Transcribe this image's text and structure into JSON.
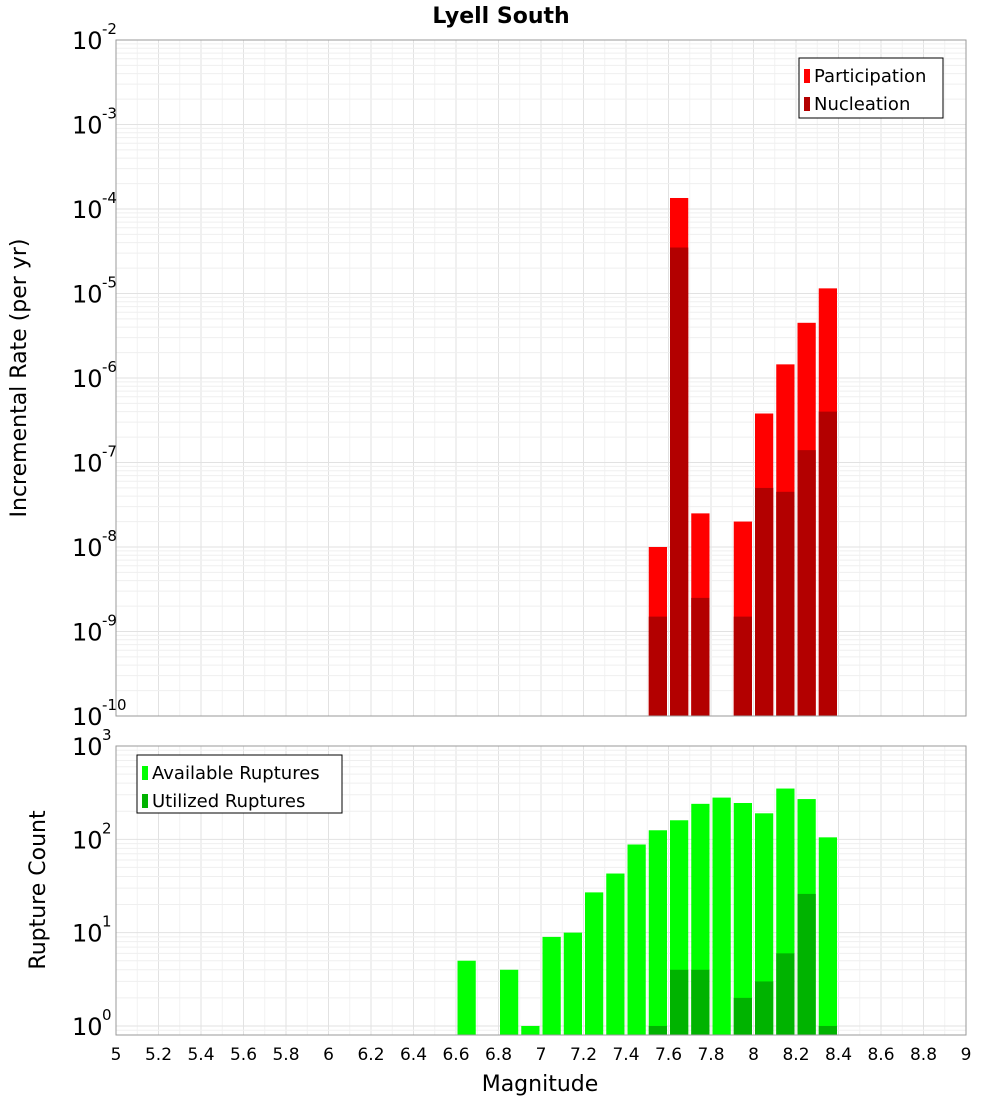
{
  "chart_data": [
    {
      "type": "bar",
      "title": "Lyell South",
      "xlabel": "",
      "ylabel": "Incremental Rate (per yr)",
      "yscale": "log",
      "ylim": [
        1e-10,
        0.01
      ],
      "xlim": [
        5,
        9
      ],
      "grid": true,
      "legend_position": "top-right",
      "y_ticks": [
        {
          "base": "10",
          "exp": "-10",
          "value": 1e-10
        },
        {
          "base": "10",
          "exp": "-9",
          "value": 1e-09
        },
        {
          "base": "10",
          "exp": "-8",
          "value": 1e-08
        },
        {
          "base": "10",
          "exp": "-7",
          "value": 1e-07
        },
        {
          "base": "10",
          "exp": "-6",
          "value": 1e-06
        },
        {
          "base": "10",
          "exp": "-5",
          "value": 1e-05
        },
        {
          "base": "10",
          "exp": "-4",
          "value": 0.0001
        },
        {
          "base": "10",
          "exp": "-3",
          "value": 0.001
        },
        {
          "base": "10",
          "exp": "-2",
          "value": 0.01
        }
      ],
      "bin_width": 0.1,
      "series": [
        {
          "name": "Participation",
          "color": "#ff0000",
          "x": [
            7.55,
            7.65,
            7.75,
            7.95,
            8.05,
            8.15,
            8.25,
            8.35
          ],
          "values": [
            1e-08,
            0.000135,
            2.5e-08,
            2e-08,
            3.8e-07,
            1.45e-06,
            4.5e-06,
            1.15e-05
          ]
        },
        {
          "name": "Nucleation",
          "color": "#b30000",
          "x": [
            7.55,
            7.65,
            7.75,
            7.95,
            8.05,
            8.15,
            8.25,
            8.35
          ],
          "values": [
            1.5e-09,
            3.5e-05,
            2.5e-09,
            1.5e-09,
            5e-08,
            4.5e-08,
            1.4e-07,
            4e-07
          ]
        }
      ]
    },
    {
      "type": "bar",
      "title": "",
      "xlabel": "Magnitude",
      "ylabel": "Rupture Count",
      "yscale": "log",
      "ylim": [
        0.8,
        1000
      ],
      "xlim": [
        5,
        9
      ],
      "grid": true,
      "legend_position": "top-left",
      "x_ticks": [
        "5",
        "5.2",
        "5.4",
        "5.6",
        "5.8",
        "6",
        "6.2",
        "6.4",
        "6.6",
        "6.8",
        "7",
        "7.2",
        "7.4",
        "7.6",
        "7.8",
        "8",
        "8.2",
        "8.4",
        "8.6",
        "8.8",
        "9"
      ],
      "y_ticks": [
        {
          "base": "10",
          "exp": "0",
          "value": 1
        },
        {
          "base": "10",
          "exp": "1",
          "value": 10
        },
        {
          "base": "10",
          "exp": "2",
          "value": 100
        },
        {
          "base": "10",
          "exp": "3",
          "value": 1000
        }
      ],
      "bin_width": 0.1,
      "series": [
        {
          "name": "Available Ruptures",
          "color": "#00ff00",
          "x": [
            6.65,
            6.85,
            6.95,
            7.05,
            7.15,
            7.25,
            7.35,
            7.45,
            7.55,
            7.65,
            7.75,
            7.85,
            7.95,
            8.05,
            8.15,
            8.25,
            8.35
          ],
          "values": [
            5,
            4,
            1,
            9,
            10,
            27,
            43,
            88,
            125,
            160,
            240,
            280,
            245,
            190,
            350,
            270,
            105
          ]
        },
        {
          "name": "Utilized Ruptures",
          "color": "#00b300",
          "x": [
            7.55,
            7.65,
            7.75,
            7.95,
            8.05,
            8.15,
            8.25,
            8.35
          ],
          "values": [
            1,
            4,
            4,
            2,
            3,
            6,
            26,
            1
          ]
        }
      ]
    }
  ]
}
